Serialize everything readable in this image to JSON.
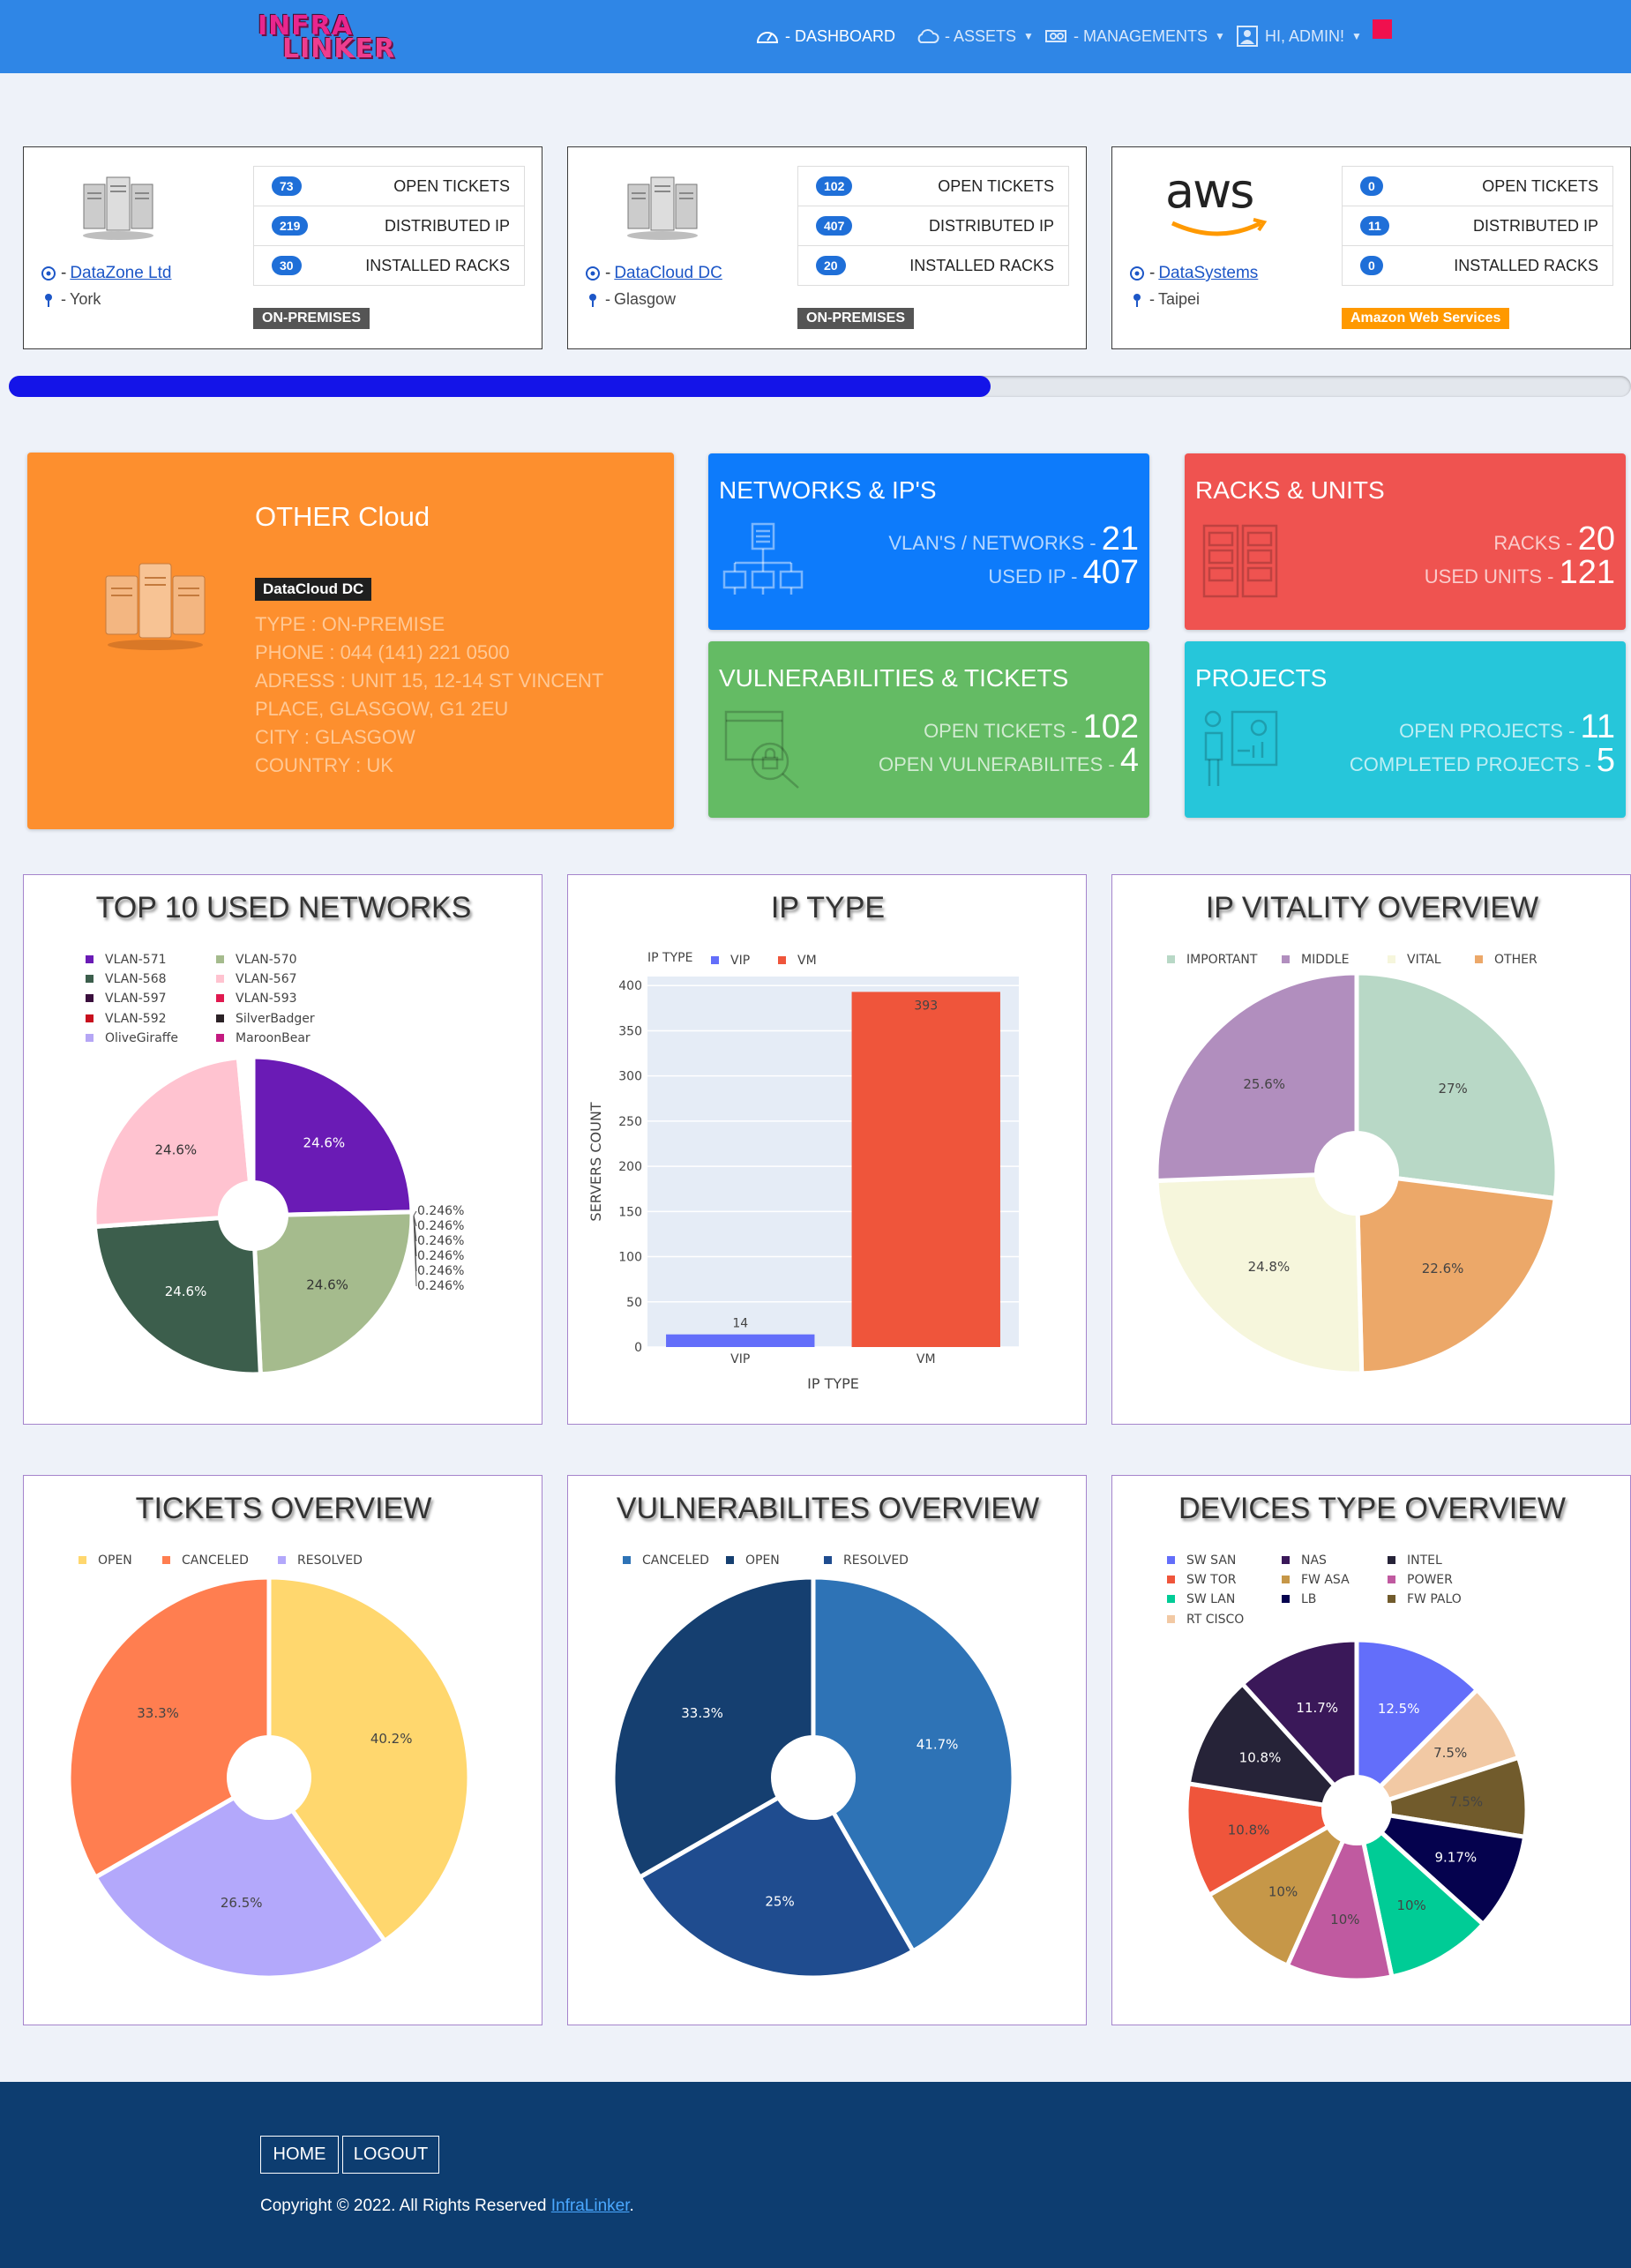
{
  "nav": {
    "logo_top": "INFRA",
    "logo_bottom": "LINKER",
    "dashboard": "- DASHBOARD",
    "assets": "- ASSETS",
    "managements": "- MANAGEMENTS",
    "user": "HI, ADMIN!"
  },
  "datacenters": [
    {
      "name": "DataZone Ltd",
      "city": "York",
      "open_tickets": "73",
      "distributed_ip": "219",
      "installed_racks": "30",
      "badge": "ON-PREMISES",
      "badge_color": "#555555"
    },
    {
      "name": "DataCloud DC",
      "city": "Glasgow",
      "open_tickets": "102",
      "distributed_ip": "407",
      "installed_racks": "20",
      "badge": "ON-PREMISES",
      "badge_color": "#555555"
    },
    {
      "name": "DataSystems",
      "city": "Taipei",
      "open_tickets": "0",
      "distributed_ip": "11",
      "installed_racks": "0",
      "badge": "Amazon Web Services",
      "badge_color": "#ff9900"
    }
  ],
  "dc_labels": {
    "open_tickets": "OPEN TICKETS",
    "distributed_ip": "DISTRIBUTED IP",
    "installed_racks": "INSTALLED RACKS",
    "dash": "-",
    "aws": "aws"
  },
  "progress": {
    "percent": 60.5
  },
  "other_cloud": {
    "title": "OTHER Cloud",
    "badge": "DataCloud DC",
    "type": "TYPE : ON-PREMISE",
    "phone": "PHONE : 044 (141) 221 0500",
    "address": "ADRESS : UNIT 15, 12-14 ST VINCENT PLACE, GLASGOW, G1 2EU",
    "city": "CITY : GLASGOW",
    "country": "COUNTRY : UK"
  },
  "stats": {
    "networks": {
      "title": "NETWORKS & IP'S",
      "l1": "VLAN'S / NETWORKS -",
      "v1": "21",
      "l2": "USED IP -",
      "v2": "407",
      "color": "#0d7bfb"
    },
    "racks": {
      "title": "RACKS & UNITS",
      "l1": "RACKS -",
      "v1": "20",
      "l2": "USED UNITS -",
      "v2": "121",
      "color": "#ef5350"
    },
    "vulns": {
      "title": "VULNERABILITIES & TICKETS",
      "l1": "OPEN TICKETS -",
      "v1": "102",
      "l2": "OPEN VULNERABILITES -",
      "v2": "4",
      "color": "#64bb64"
    },
    "projects": {
      "title": "PROJECTS",
      "l1": "OPEN PROJECTS -",
      "v1": "11",
      "l2": "COMPLETED PROJECTS -",
      "v2": "5",
      "color": "#26c6da"
    }
  },
  "chart_data": [
    {
      "id": "networks",
      "type": "pie",
      "title": "TOP 10 USED NETWORKS",
      "labels": [
        "VLAN-571",
        "VLAN-570",
        "VLAN-568",
        "VLAN-567",
        "VLAN-597",
        "VLAN-593",
        "VLAN-592",
        "SilverBadger",
        "OliveGiraffe",
        "MaroonBear"
      ],
      "values": [
        24.6,
        24.6,
        24.6,
        24.6,
        0.246,
        0.246,
        0.246,
        0.246,
        0.246,
        0.246
      ],
      "text": [
        "24.6%",
        "24.6%",
        "24.6%",
        "24.6%",
        "0.246%",
        "0.246%",
        "0.246%",
        "0.246%",
        "0.246%",
        "0.246%"
      ],
      "colors": [
        "#6a1bb5",
        "#a5bb8d",
        "#3c5e4c",
        "#ffc3d0",
        "#3a0f3d",
        "#e0194f",
        "#c8101e",
        "#2b2226",
        "#b5a6f5",
        "#c41a80"
      ]
    },
    {
      "id": "iptype",
      "type": "bar",
      "title": "IP TYPE",
      "legend_title": "IP TYPE",
      "categories": [
        "VIP",
        "VM"
      ],
      "values": [
        14,
        393
      ],
      "text": [
        "14",
        "393"
      ],
      "colors": [
        "#636efa",
        "#ef553b"
      ],
      "xlabel": "IP TYPE",
      "ylabel": "SERVERS COUNT",
      "yticks": [
        "0",
        "50",
        "100",
        "150",
        "200",
        "250",
        "300",
        "350",
        "400"
      ],
      "ylim": [
        0,
        410
      ]
    },
    {
      "id": "vitality",
      "type": "pie",
      "title": "IP VITALITY OVERVIEW",
      "labels": [
        "IMPORTANT",
        "MIDDLE",
        "VITAL",
        "OTHER"
      ],
      "legend_order": [
        "IMPORTANT",
        "MIDDLE",
        "VITAL",
        "OTHER"
      ],
      "slices": [
        {
          "label": "IMPORTANT",
          "value": 27,
          "text": "27%",
          "color": "#b8d8c6"
        },
        {
          "label": "OTHER",
          "value": 22.6,
          "text": "22.6%",
          "color": "#eca869"
        },
        {
          "label": "VITAL",
          "value": 24.8,
          "text": "24.8%",
          "color": "#f6f6dc"
        },
        {
          "label": "MIDDLE",
          "value": 25.6,
          "text": "25.6%",
          "color": "#b18ebe"
        }
      ]
    },
    {
      "id": "tickets",
      "type": "pie",
      "title": "TICKETS OVERVIEW",
      "legend_order": [
        "OPEN",
        "CANCELED",
        "RESOLVED"
      ],
      "slices": [
        {
          "label": "OPEN",
          "value": 40.2,
          "text": "40.2%",
          "color": "#ffd76e"
        },
        {
          "label": "RESOLVED",
          "value": 26.5,
          "text": "26.5%",
          "color": "#b3a8fb"
        },
        {
          "label": "CANCELED",
          "value": 33.3,
          "text": "33.3%",
          "color": "#ff7e50"
        }
      ]
    },
    {
      "id": "vulnerabilities",
      "type": "pie",
      "title": "VULNERABILITES OVERVIEW",
      "legend_order": [
        "CANCELED",
        "OPEN",
        "RESOLVED"
      ],
      "slices": [
        {
          "label": "CANCELED",
          "value": 41.7,
          "text": "41.7%",
          "color": "#2e73b6"
        },
        {
          "label": "RESOLVED",
          "value": 25,
          "text": "25%",
          "color": "#1f4c8f"
        },
        {
          "label": "OPEN",
          "value": 33.3,
          "text": "33.3%",
          "color": "#153f70"
        }
      ]
    },
    {
      "id": "devices",
      "type": "pie",
      "title": "DEVICES TYPE OVERVIEW",
      "legend_order": [
        "SW SAN",
        "NAS",
        "INTEL",
        "SW TOR",
        "FW ASA",
        "POWER",
        "SW LAN",
        "LB",
        "FW PALO",
        "RT CISCO"
      ],
      "slices": [
        {
          "label": "SW SAN",
          "value": 12.5,
          "text": "12.5%",
          "color": "#636efa"
        },
        {
          "label": "RT CISCO",
          "value": 7.5,
          "text": "7.5%",
          "color": "#f2c9a4"
        },
        {
          "label": "FW PALO",
          "value": 7.5,
          "text": "7.5%",
          "color": "#715b2c"
        },
        {
          "label": "LB",
          "value": 9.17,
          "text": "9.17%",
          "color": "#05024e"
        },
        {
          "label": "SW LAN",
          "value": 10,
          "text": "10%",
          "color": "#00cc96"
        },
        {
          "label": "POWER",
          "value": 10,
          "text": "10%",
          "color": "#c05aa0"
        },
        {
          "label": "FW ASA",
          "value": 10,
          "text": "10%",
          "color": "#c69748"
        },
        {
          "label": "SW TOR",
          "value": 10.8,
          "text": "10.8%",
          "color": "#ef553b"
        },
        {
          "label": "INTEL",
          "value": 10.8,
          "text": "10.8%",
          "color": "#262338"
        },
        {
          "label": "NAS",
          "value": 11.7,
          "text": "11.7%",
          "color": "#3a1859"
        }
      ]
    }
  ],
  "footer": {
    "home": "HOME",
    "logout": "LOGOUT",
    "copyright": "Copyright © 2022. All Rights Reserved ",
    "brand": "InfraLinker",
    "dot": "."
  }
}
